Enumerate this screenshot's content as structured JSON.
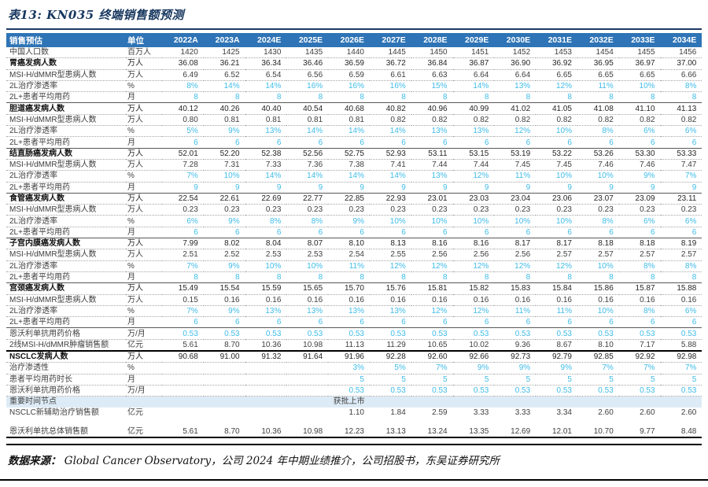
{
  "title": "表13:  KN035 终端销售额预测",
  "footer": {
    "source_label": "数据来源：",
    "source_text": "Global Cancer Observatory，公司 2024 年中期业绩推介，公司招股书，东吴证券研究所"
  },
  "colors": {
    "header_bg": "#2E74B6",
    "header_text": "#FFFFFF",
    "assumption_blue": "#3FBCE9",
    "milestone_bg": "#DDEBF6",
    "title_navy": "#17375E",
    "body_text": "#3F3F3F"
  },
  "table": {
    "header": {
      "label": "销售预估",
      "unit": "单位",
      "years": [
        "2022A",
        "2023A",
        "2024E",
        "2025E",
        "2026E",
        "2027E",
        "2028E",
        "2029E",
        "2030E",
        "2031E",
        "2032E",
        "2033E",
        "2034E"
      ]
    },
    "rows": [
      {
        "label": "中国人口数",
        "unit": "百万人",
        "style": "normal",
        "border": "dotted",
        "values": [
          "1420",
          "1425",
          "1430",
          "1435",
          "1440",
          "1445",
          "1450",
          "1451",
          "1452",
          "1453",
          "1454",
          "1455",
          "1456"
        ]
      },
      {
        "label": "胃癌发病人数",
        "unit": "万人",
        "style": "section",
        "border": "dotted",
        "values": [
          "36.08",
          "36.21",
          "36.34",
          "36.46",
          "36.59",
          "36.72",
          "36.84",
          "36.87",
          "36.90",
          "36.92",
          "36.95",
          "36.97",
          "37.00"
        ]
      },
      {
        "label": "MSI-H/dMMR型患病人数",
        "unit": "万人",
        "style": "normal",
        "border": "dotted",
        "values": [
          "6.49",
          "6.52",
          "6.54",
          "6.56",
          "6.59",
          "6.61",
          "6.63",
          "6.64",
          "6.64",
          "6.65",
          "6.65",
          "6.65",
          "6.66"
        ]
      },
      {
        "label": "2L治疗渗透率",
        "unit": "%",
        "style": "assumption",
        "border": "dotted",
        "values": [
          "8%",
          "14%",
          "14%",
          "16%",
          "16%",
          "16%",
          "15%",
          "14%",
          "13%",
          "12%",
          "11%",
          "10%",
          "8%"
        ]
      },
      {
        "label": "2L+患者平均用药",
        "unit": "月",
        "style": "assumption",
        "border": "solid",
        "values": [
          "8",
          "8",
          "8",
          "8",
          "8",
          "8",
          "8",
          "8",
          "8",
          "8",
          "8",
          "8",
          "8"
        ]
      },
      {
        "label": "胆道癌发病人数",
        "unit": "万人",
        "style": "section",
        "border": "dotted",
        "values": [
          "40.12",
          "40.26",
          "40.40",
          "40.54",
          "40.68",
          "40.82",
          "40.96",
          "40.99",
          "41.02",
          "41.05",
          "41.08",
          "41.10",
          "41.13"
        ]
      },
      {
        "label": "MSI-H/dMMR型患病人数",
        "unit": "万人",
        "style": "normal",
        "border": "dotted",
        "values": [
          "0.80",
          "0.81",
          "0.81",
          "0.81",
          "0.81",
          "0.82",
          "0.82",
          "0.82",
          "0.82",
          "0.82",
          "0.82",
          "0.82",
          "0.82"
        ]
      },
      {
        "label": "2L治疗渗透率",
        "unit": "%",
        "style": "assumption",
        "border": "dotted",
        "values": [
          "5%",
          "9%",
          "13%",
          "14%",
          "14%",
          "14%",
          "13%",
          "13%",
          "12%",
          "10%",
          "8%",
          "6%",
          "6%"
        ]
      },
      {
        "label": "2L+患者平均用药",
        "unit": "月",
        "style": "assumption",
        "border": "solid",
        "values": [
          "6",
          "6",
          "6",
          "6",
          "6",
          "6",
          "6",
          "6",
          "6",
          "6",
          "6",
          "6",
          "6"
        ]
      },
      {
        "label": "结直肠癌发病人数",
        "unit": "万人",
        "style": "section",
        "border": "dotted",
        "values": [
          "52.01",
          "52.20",
          "52.38",
          "52.56",
          "52.75",
          "52.93",
          "53.11",
          "53.15",
          "53.19",
          "53.22",
          "53.26",
          "53.30",
          "53.33"
        ]
      },
      {
        "label": "MSI-H/dMMR型患病人数",
        "unit": "万人",
        "style": "normal",
        "border": "dotted",
        "values": [
          "7.28",
          "7.31",
          "7.33",
          "7.36",
          "7.38",
          "7.41",
          "7.44",
          "7.44",
          "7.45",
          "7.45",
          "7.46",
          "7.46",
          "7.47"
        ]
      },
      {
        "label": "2L治疗渗透率",
        "unit": "%",
        "style": "assumption",
        "border": "dotted",
        "values": [
          "7%",
          "10%",
          "14%",
          "14%",
          "14%",
          "14%",
          "13%",
          "12%",
          "11%",
          "10%",
          "10%",
          "9%",
          "7%"
        ]
      },
      {
        "label": "2L+患者平均用药",
        "unit": "月",
        "style": "assumption",
        "border": "solid",
        "values": [
          "9",
          "9",
          "9",
          "9",
          "9",
          "9",
          "9",
          "9",
          "9",
          "9",
          "9",
          "9",
          "9"
        ]
      },
      {
        "label": "食管癌发病人数",
        "unit": "万人",
        "style": "section",
        "border": "dotted",
        "values": [
          "22.54",
          "22.61",
          "22.69",
          "22.77",
          "22.85",
          "22.93",
          "23.01",
          "23.03",
          "23.04",
          "23.06",
          "23.07",
          "23.09",
          "23.11"
        ]
      },
      {
        "label": "MSI-H/dMMR型患病人数",
        "unit": "万人",
        "style": "normal",
        "border": "dotted",
        "values": [
          "0.23",
          "0.23",
          "0.23",
          "0.23",
          "0.23",
          "0.23",
          "0.23",
          "0.23",
          "0.23",
          "0.23",
          "0.23",
          "0.23",
          "0.23"
        ]
      },
      {
        "label": "2L治疗渗透率",
        "unit": "%",
        "style": "assumption",
        "border": "dotted",
        "values": [
          "6%",
          "9%",
          "8%",
          "8%",
          "9%",
          "10%",
          "10%",
          "10%",
          "10%",
          "10%",
          "8%",
          "6%",
          "6%"
        ]
      },
      {
        "label": "2L+患者平均用药",
        "unit": "月",
        "style": "assumption",
        "border": "solid",
        "values": [
          "6",
          "6",
          "6",
          "6",
          "6",
          "6",
          "6",
          "6",
          "6",
          "6",
          "6",
          "6",
          "6"
        ]
      },
      {
        "label": "子宫内膜癌发病人数",
        "unit": "万人",
        "style": "section",
        "border": "dotted",
        "values": [
          "7.99",
          "8.02",
          "8.04",
          "8.07",
          "8.10",
          "8.13",
          "8.16",
          "8.16",
          "8.17",
          "8.17",
          "8.18",
          "8.18",
          "8.19"
        ]
      },
      {
        "label": "MSI-H/dMMR型患病人数",
        "unit": "万人",
        "style": "normal",
        "border": "dotted",
        "values": [
          "2.51",
          "2.52",
          "2.53",
          "2.53",
          "2.54",
          "2.55",
          "2.56",
          "2.56",
          "2.56",
          "2.57",
          "2.57",
          "2.57",
          "2.57"
        ]
      },
      {
        "label": "2L治疗渗透率",
        "unit": "%",
        "style": "assumption",
        "border": "dotted",
        "values": [
          "7%",
          "9%",
          "10%",
          "10%",
          "11%",
          "12%",
          "12%",
          "12%",
          "12%",
          "12%",
          "10%",
          "8%",
          "8%"
        ]
      },
      {
        "label": "2L+患者平均用药",
        "unit": "月",
        "style": "assumption",
        "border": "solid",
        "values": [
          "8",
          "8",
          "8",
          "8",
          "8",
          "8",
          "8",
          "8",
          "8",
          "8",
          "8",
          "8",
          "8"
        ]
      },
      {
        "label": "宫颈癌发病人数",
        "unit": "万人",
        "style": "section",
        "border": "dotted",
        "values": [
          "15.49",
          "15.54",
          "15.59",
          "15.65",
          "15.70",
          "15.76",
          "15.81",
          "15.82",
          "15.83",
          "15.84",
          "15.86",
          "15.87",
          "15.88"
        ]
      },
      {
        "label": "MSI-H/dMMR型患病人数",
        "unit": "万人",
        "style": "normal",
        "border": "dotted",
        "values": [
          "0.15",
          "0.16",
          "0.16",
          "0.16",
          "0.16",
          "0.16",
          "0.16",
          "0.16",
          "0.16",
          "0.16",
          "0.16",
          "0.16",
          "0.16"
        ]
      },
      {
        "label": "2L治疗渗透率",
        "unit": "%",
        "style": "assumption",
        "border": "dotted",
        "values": [
          "7%",
          "9%",
          "13%",
          "13%",
          "13%",
          "13%",
          "12%",
          "12%",
          "11%",
          "11%",
          "10%",
          "8%",
          "6%"
        ]
      },
      {
        "label": "2L+患者平均用药",
        "unit": "月",
        "style": "assumption",
        "border": "solid",
        "values": [
          "6",
          "6",
          "6",
          "6",
          "6",
          "6",
          "6",
          "6",
          "6",
          "6",
          "6",
          "6",
          "6"
        ]
      },
      {
        "label": "恩沃利单抗用药价格",
        "unit": "万/月",
        "style": "assumption",
        "border": "dotted",
        "values": [
          "0.53",
          "0.53",
          "0.53",
          "0.53",
          "0.53",
          "0.53",
          "0.53",
          "0.53",
          "0.53",
          "0.53",
          "0.53",
          "0.53",
          "0.53"
        ]
      },
      {
        "label": "2线MSI-H/dMMR肿瘤销售额",
        "unit": "亿元",
        "style": "normal",
        "border": "thick",
        "values": [
          "5.61",
          "8.70",
          "10.36",
          "10.98",
          "11.13",
          "11.29",
          "10.65",
          "10.02",
          "9.36",
          "8.67",
          "8.10",
          "7.17",
          "5.88"
        ]
      },
      {
        "label": "NSCLC发病人数",
        "unit": "万人",
        "style": "section",
        "border": "dotted",
        "values": [
          "90.68",
          "91.00",
          "91.32",
          "91.64",
          "91.96",
          "92.28",
          "92.60",
          "92.66",
          "92.73",
          "92.79",
          "92.85",
          "92.92",
          "92.98"
        ]
      },
      {
        "label": "治疗渗透性",
        "unit": "%",
        "style": "assumption",
        "border": "dotted",
        "values": [
          "",
          "",
          "",
          "",
          "3%",
          "5%",
          "7%",
          "9%",
          "9%",
          "9%",
          "7%",
          "7%",
          "7%"
        ]
      },
      {
        "label": "患者平均用药时长",
        "unit": "月",
        "style": "assumption",
        "border": "dotted",
        "values": [
          "",
          "",
          "",
          "",
          "5",
          "5",
          "5",
          "5",
          "5",
          "5",
          "5",
          "5",
          "5"
        ]
      },
      {
        "label": "恩沃利单抗用药价格",
        "unit": "万/月",
        "style": "assumption",
        "border": "dotted",
        "values": [
          "",
          "",
          "",
          "",
          "0.53",
          "0.53",
          "0.53",
          "0.53",
          "0.53",
          "0.53",
          "0.53",
          "0.53",
          "0.53"
        ]
      },
      {
        "label": "重要时间节点",
        "unit": "",
        "style": "milestone",
        "border": "none",
        "milestone_col": 4,
        "values": [
          "",
          "",
          "",
          "",
          "获批上市",
          "",
          "",
          "",
          "",
          "",
          "",
          "",
          ""
        ]
      },
      {
        "label": "NSCLC新辅助治疗销售额",
        "unit": "亿元",
        "style": "normal",
        "border": "none",
        "values": [
          "",
          "",
          "",
          "",
          "1.10",
          "1.84",
          "2.59",
          "3.33",
          "3.33",
          "3.34",
          "2.60",
          "2.60",
          "2.60"
        ]
      },
      {
        "label": "",
        "unit": "",
        "style": "empty",
        "border": "none",
        "values": [
          "",
          "",
          "",
          "",
          "",
          "",
          "",
          "",
          "",
          "",
          "",
          "",
          ""
        ]
      },
      {
        "label": "恩沃利单抗总体销售额",
        "unit": "亿元",
        "style": "normal",
        "border": "thick",
        "values": [
          "5.61",
          "8.70",
          "10.36",
          "10.98",
          "12.23",
          "13.13",
          "13.24",
          "13.35",
          "12.69",
          "12.01",
          "10.70",
          "9.77",
          "8.48"
        ]
      }
    ]
  }
}
